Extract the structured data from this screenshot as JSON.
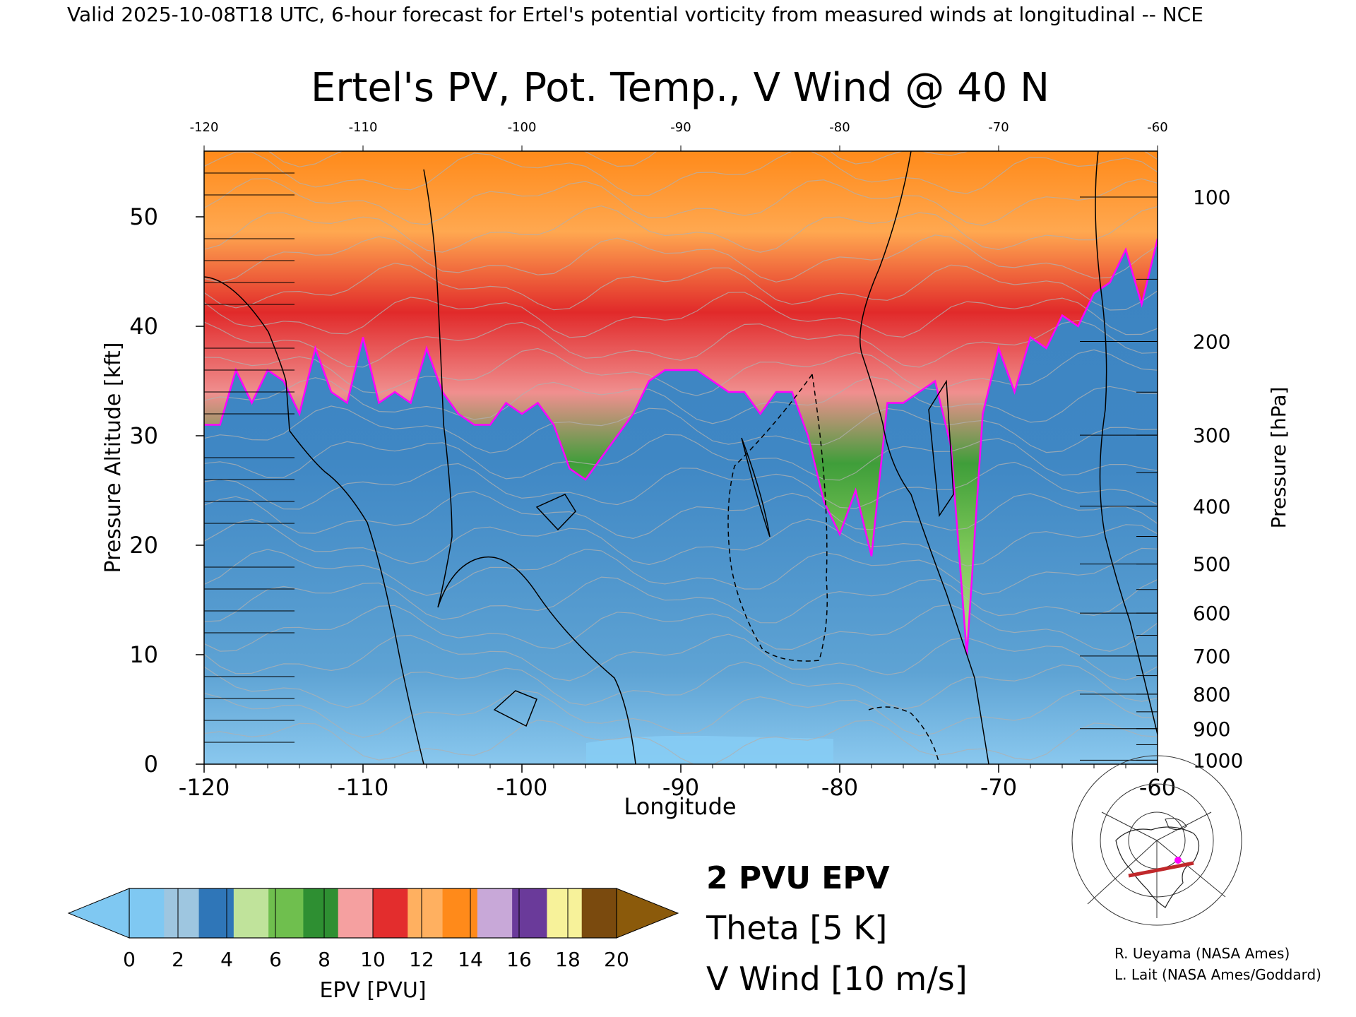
{
  "header": {
    "valid_line": "Valid 2025-10-08T18 UTC, 6-hour forecast for Ertel's potential vorticity from measured winds at longitudinal -- NCE"
  },
  "chart_data": {
    "type": "heatmap",
    "title": "Ertel's PV, Pot. Temp., V Wind @ 40 N",
    "xlabel": "Longitude",
    "ylabel": "Pressure Altitude [kft]",
    "y2label": "Pressure [hPa]",
    "xlim": [
      -120,
      -60
    ],
    "ylim": [
      0,
      56
    ],
    "x_ticks": [
      "-120",
      "-110",
      "-100",
      "-90",
      "-80",
      "-70",
      "-60"
    ],
    "x_tick_values": [
      -120,
      -110,
      -100,
      -90,
      -80,
      -70,
      -60
    ],
    "y_ticks": [
      "0",
      "10",
      "20",
      "30",
      "40",
      "50"
    ],
    "y_tick_values": [
      0,
      10,
      20,
      30,
      40,
      50
    ],
    "pressure_ticks": [
      "100",
      "200",
      "300",
      "400",
      "500",
      "600",
      "700",
      "800",
      "900",
      "1000"
    ],
    "pressure_tick_values": [
      100,
      200,
      300,
      400,
      500,
      600,
      700,
      800,
      900,
      1000
    ],
    "tropopause_2pvu_kft": {
      "x": [
        -120,
        -119,
        -118,
        -117,
        -116,
        -115,
        -114,
        -113,
        -112,
        -111,
        -110,
        -109,
        -108,
        -107,
        -106,
        -105,
        -104,
        -103,
        -102,
        -101,
        -100,
        -99,
        -98,
        -97,
        -96,
        -95,
        -94,
        -93,
        -92,
        -91,
        -90,
        -89,
        -88,
        -87,
        -86,
        -85,
        -84,
        -83,
        -82,
        -81,
        -80,
        -79,
        -78,
        -77,
        -76,
        -75,
        -74,
        -73,
        -72,
        -71,
        -70,
        -69,
        -68,
        -67,
        -66,
        -65,
        -64,
        -63,
        -62,
        -61,
        -60
      ],
      "y": [
        31,
        31,
        36,
        33,
        36,
        35,
        32,
        38,
        34,
        33,
        39,
        33,
        34,
        33,
        38,
        34,
        32,
        31,
        31,
        33,
        32,
        33,
        31,
        27,
        26,
        28,
        30,
        32,
        35,
        36,
        36,
        36,
        35,
        34,
        34,
        32,
        34,
        34,
        30,
        24,
        21,
        25,
        19,
        33,
        33,
        34,
        35,
        29,
        10,
        32,
        38,
        34,
        39,
        38,
        41,
        40,
        43,
        44,
        47,
        42,
        48
      ]
    },
    "epv_tropopause_pvu": 2,
    "colorbar": {
      "label": "EPV [PVU]",
      "ticks": [
        "0",
        "2",
        "4",
        "6",
        "8",
        "10",
        "12",
        "14",
        "16",
        "18",
        "20"
      ],
      "tick_values": [
        0,
        2,
        4,
        6,
        8,
        10,
        12,
        14,
        16,
        18,
        20
      ],
      "colors": [
        "#7fc8f2",
        "#9ec6e0",
        "#2f76b8",
        "#c0e39b",
        "#6fbf4e",
        "#2e8f32",
        "#f5a0a0",
        "#e32d2d",
        "#ffb060",
        "#ff8a1a",
        "#c8a8d8",
        "#6a3a9a",
        "#f7f29a",
        "#7a4a0e"
      ],
      "under_color": "#7fc8f2",
      "over_color": "#8b5a0b"
    },
    "legend": [
      {
        "label": "2 PVU EPV",
        "color": "#ff00ff"
      },
      {
        "label": "Theta [5 K]",
        "color": "#a8a8a8"
      },
      {
        "label": "V Wind [10 m/s]",
        "color": "#000000"
      }
    ]
  },
  "credits": {
    "line1": "R. Ueyama (NASA Ames)",
    "line2": "L. Lait (NASA Ames/Goddard)"
  },
  "map_inset": {
    "icon": "north-america-map-icon",
    "track_color": "#c0282b",
    "marker_color": "#ff00ff"
  }
}
